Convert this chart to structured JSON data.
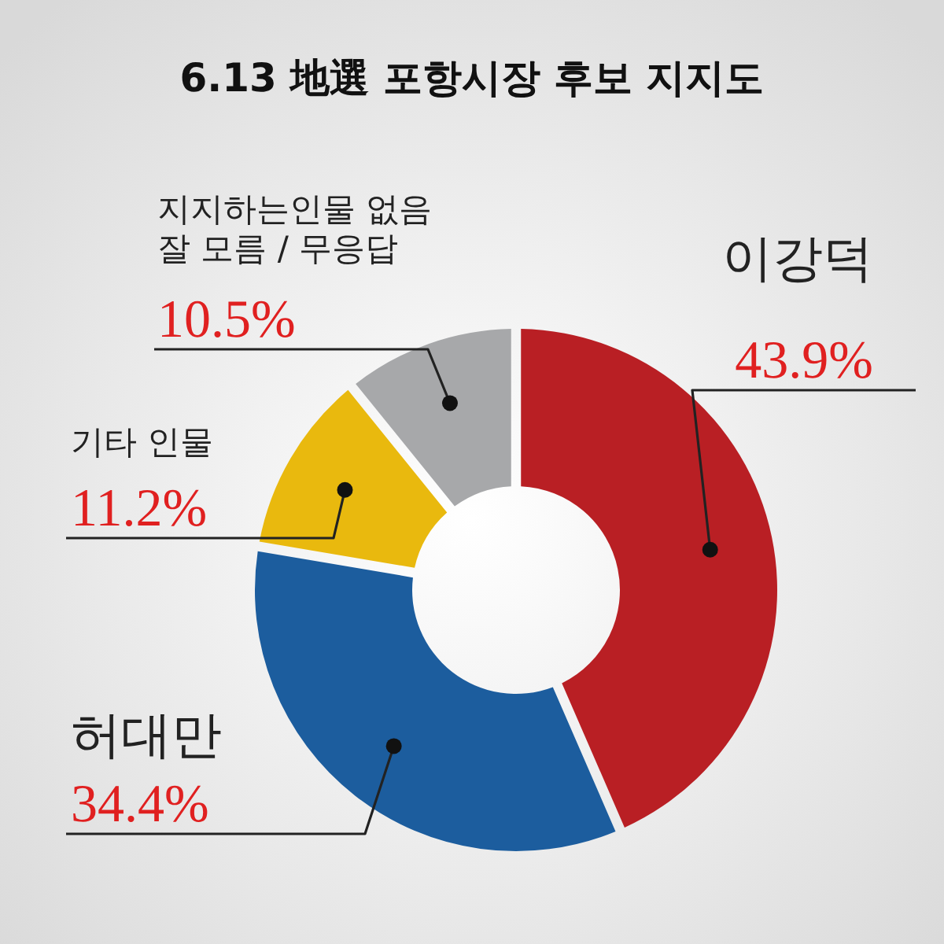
{
  "chart_data": {
    "type": "donut",
    "title": "6.13 地選 포항시장 후보 지지도",
    "categories": [
      "이강덕",
      "허대만",
      "기타 인물",
      "지지하는인물 없음\n잘 모름 / 무응답"
    ],
    "values": [
      43.9,
      34.4,
      11.2,
      10.5
    ],
    "value_labels": [
      "43.9%",
      "34.4%",
      "11.2%",
      "10.5%"
    ],
    "colors": [
      "#b91f24",
      "#1c5d9e",
      "#e9b90e",
      "#a7a8aa"
    ]
  }
}
